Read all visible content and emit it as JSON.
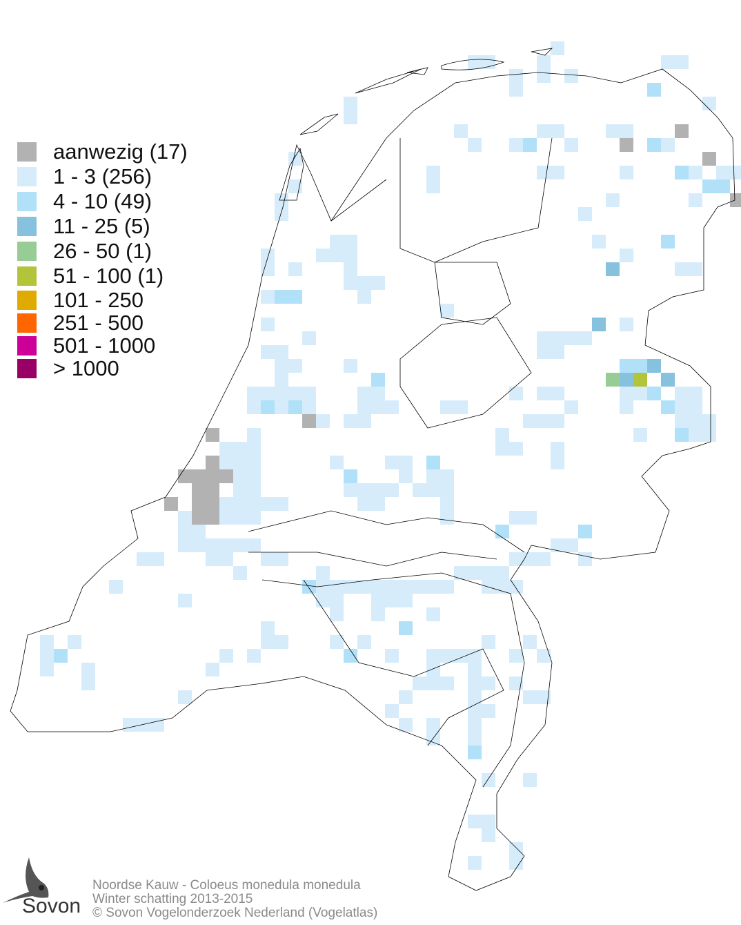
{
  "legend": {
    "items": [
      {
        "label": "aanwezig (17)",
        "color": "#b2b2b2"
      },
      {
        "label": "1 - 3 (256)",
        "color": "#d6ecfa"
      },
      {
        "label": "4 - 10 (49)",
        "color": "#b0e1f9"
      },
      {
        "label": "11 - 25 (5)",
        "color": "#86c1de"
      },
      {
        "label": "26 - 50 (1)",
        "color": "#98cc95"
      },
      {
        "label": "51 - 100 (1)",
        "color": "#b2c43a"
      },
      {
        "label": "101 - 250",
        "color": "#e0ab00"
      },
      {
        "label": "251 - 500",
        "color": "#ff6600"
      },
      {
        "label": "501 - 1000",
        "color": "#cc0099"
      },
      {
        "label": "> 1000",
        "color": "#990066"
      }
    ]
  },
  "footer": {
    "species": "Noordse Kauw - Coloeus monedula monedula",
    "period": "Winter schatting 2013-2015",
    "copyright": "© Sovon Vogelonderzoek Nederland (Vogelatlas)"
  },
  "logo": {
    "text": "Sovon"
  },
  "map": {
    "outline_color": "#000000"
  }
}
